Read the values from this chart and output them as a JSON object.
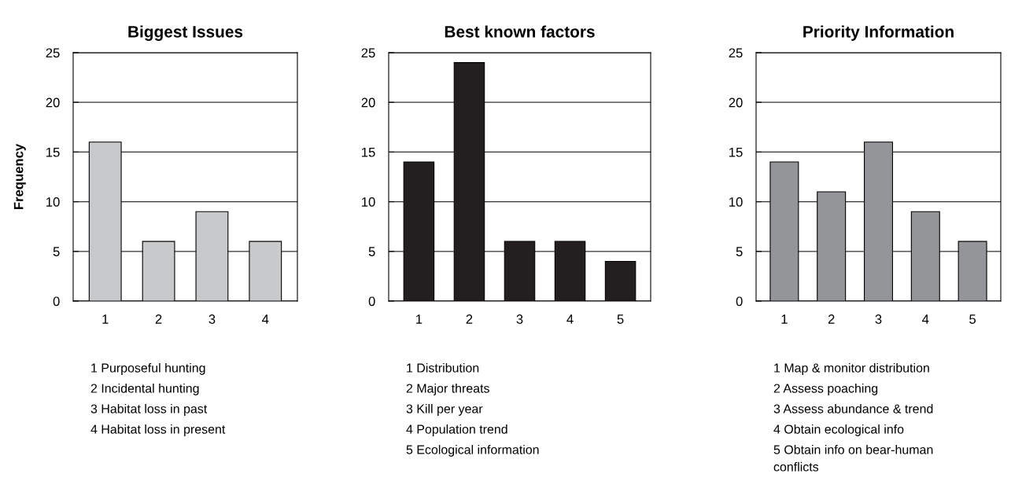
{
  "chart_data": [
    {
      "type": "bar",
      "title": "Biggest Issues",
      "ylabel": "Frequency",
      "categories": [
        "1",
        "2",
        "3",
        "4"
      ],
      "values": [
        16,
        6,
        9,
        6
      ],
      "color": "#c8c9ca",
      "ylim": [
        0,
        25
      ],
      "yticks": [
        0,
        5,
        10,
        15,
        20,
        25
      ],
      "grid": "y",
      "annotations": [
        "1 Purposeful hunting",
        "2 Incidental hunting",
        "3 Habitat loss in past",
        "4 Habitat loss in present"
      ]
    },
    {
      "type": "bar",
      "title": "Best known factors",
      "categories": [
        "1",
        "2",
        "3",
        "4",
        "5"
      ],
      "values": [
        14,
        24,
        6,
        6,
        4
      ],
      "color": "#231f20",
      "ylim": [
        0,
        25
      ],
      "yticks": [
        0,
        5,
        10,
        15,
        20,
        25
      ],
      "grid": "y",
      "annotations": [
        "1 Distribution",
        "2 Major threats",
        "3 Kill per year",
        "4 Population trend",
        "5 Ecological information"
      ]
    },
    {
      "type": "bar",
      "title": "Priority Information",
      "categories": [
        "1",
        "2",
        "3",
        "4",
        "5"
      ],
      "values": [
        14,
        11,
        16,
        9,
        6
      ],
      "color": "#939598",
      "ylim": [
        0,
        25
      ],
      "yticks": [
        0,
        5,
        10,
        15,
        20,
        25
      ],
      "grid": "y",
      "annotations": [
        "1 Map & monitor distribution",
        "2 Assess poaching",
        "3 Assess abundance & trend",
        "4 Obtain ecological info",
        "5 Obtain info on bear-human\nconflicts"
      ]
    }
  ]
}
